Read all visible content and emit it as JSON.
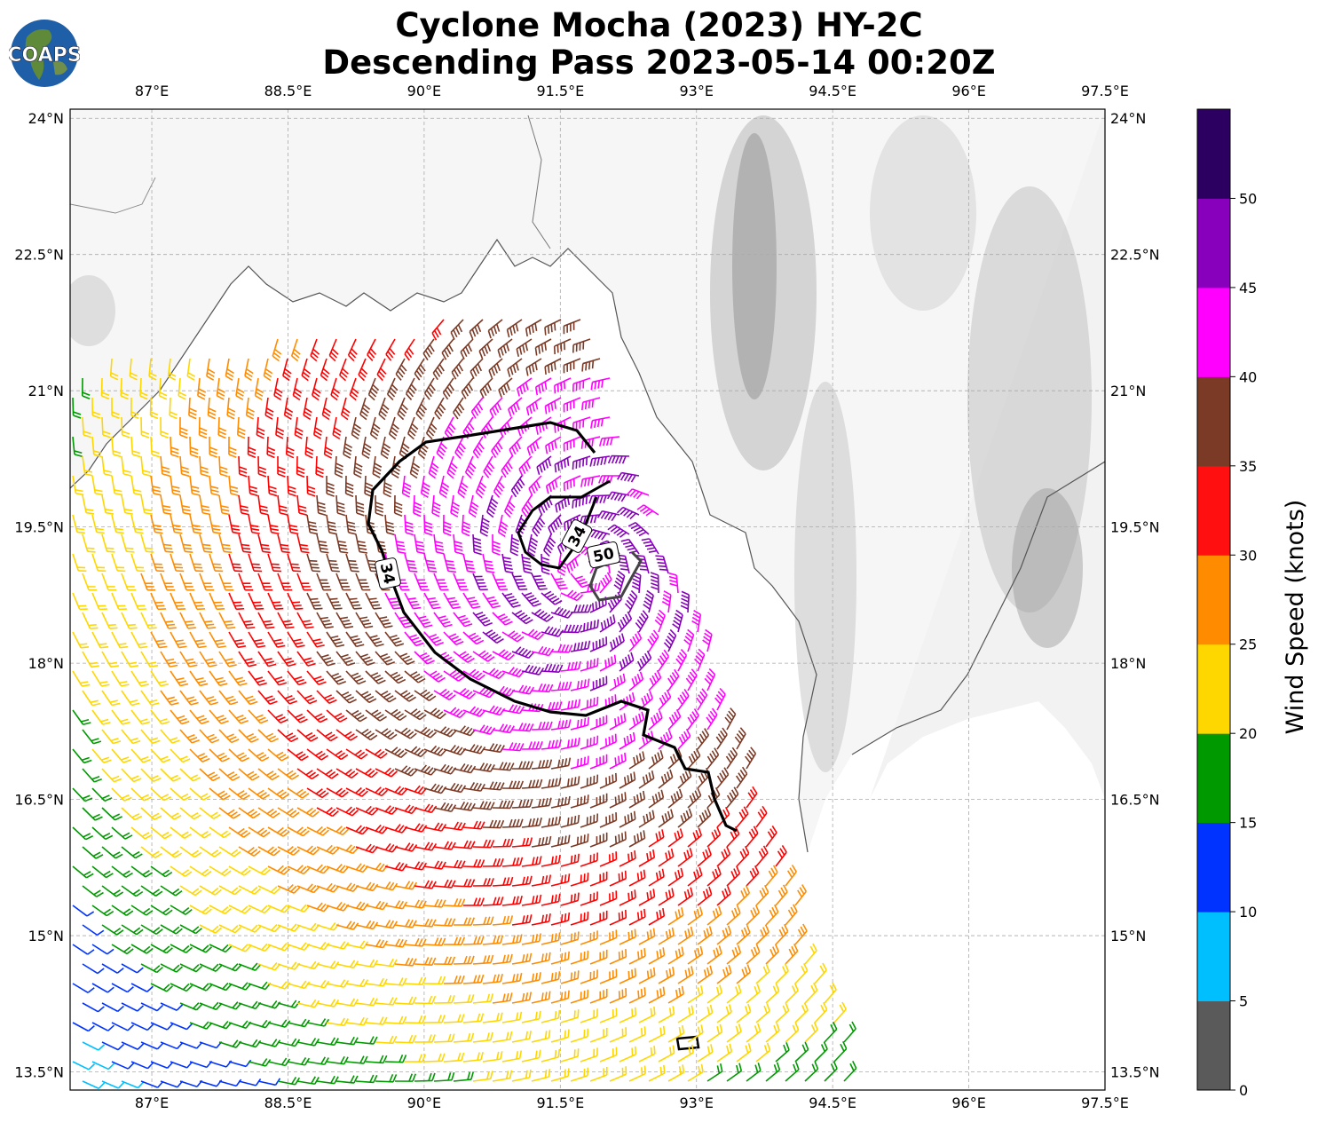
{
  "title": {
    "line1": "Cyclone Mocha (2023) HY-2C",
    "line2": "Descending Pass 2023-05-14 00:20Z"
  },
  "logo": {
    "text": "COAPS"
  },
  "map": {
    "lon_ticks": [
      "87°E",
      "88.5°E",
      "90°E",
      "91.5°E",
      "93°E",
      "94.5°E",
      "96°E",
      "97.5°E"
    ],
    "lat_ticks": [
      "24°N",
      "22.5°N",
      "21°N",
      "19.5°N",
      "18°N",
      "16.5°N",
      "15°N",
      "13.5°N"
    ],
    "lon_range": [
      86.1,
      97.5
    ],
    "lat_range": [
      13.3,
      24.1
    ],
    "contour_labels": [
      "34",
      "34",
      "50"
    ],
    "wind_colors": [
      "#5a5a5a",
      "#00bfff",
      "#0033ff",
      "#009900",
      "#ffd700",
      "#ff8c00",
      "#ff0000",
      "#7b3a26",
      "#ff00ff",
      "#8800bb",
      "#2b0060"
    ]
  },
  "colorbar": {
    "label": "Wind Speed (knots)",
    "ticks": [
      "0",
      "5",
      "10",
      "15",
      "20",
      "25",
      "30",
      "35",
      "40",
      "45",
      "50"
    ],
    "colors": [
      "#5a5a5a",
      "#00bfff",
      "#0033ff",
      "#009900",
      "#ffd700",
      "#ff8c00",
      "#ff0f0f",
      "#7b3a26",
      "#ff00ff",
      "#8800bb",
      "#2b0060"
    ]
  }
}
